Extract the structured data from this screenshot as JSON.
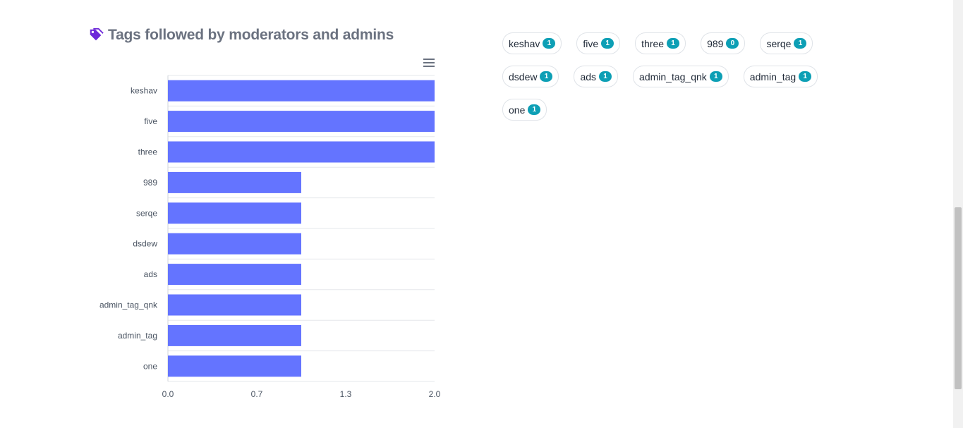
{
  "heading": {
    "title": "Tags followed by moderators and admins",
    "icon": "tag-icon",
    "icon_color": "#6d28d9"
  },
  "chart_data": {
    "type": "bar",
    "orientation": "horizontal",
    "title": "",
    "xlabel": "",
    "ylabel": "",
    "categories": [
      "keshav",
      "five",
      "three",
      "989",
      "serqe",
      "dsdew",
      "ads",
      "admin_tag_qnk",
      "admin_tag",
      "one"
    ],
    "values": [
      2,
      2,
      2,
      1,
      1,
      1,
      1,
      1,
      1,
      1
    ],
    "xlim": [
      0,
      2
    ],
    "xticks": [
      "0.0",
      "0.7",
      "1.3",
      "2.0"
    ],
    "bar_color": "#6474ff",
    "grid": true,
    "legend": "none"
  },
  "pills": [
    [
      {
        "label": "keshav",
        "count": "1"
      },
      {
        "label": "five",
        "count": "1"
      },
      {
        "label": "three",
        "count": "1"
      },
      {
        "label": "989",
        "count": "0"
      },
      {
        "label": "serqe",
        "count": "1"
      }
    ],
    [
      {
        "label": "dsdew",
        "count": "1"
      },
      {
        "label": "ads",
        "count": "1"
      },
      {
        "label": "admin_tag_qnk",
        "count": "1"
      },
      {
        "label": "admin_tag",
        "count": "1"
      }
    ],
    [
      {
        "label": "one",
        "count": "1"
      }
    ]
  ]
}
